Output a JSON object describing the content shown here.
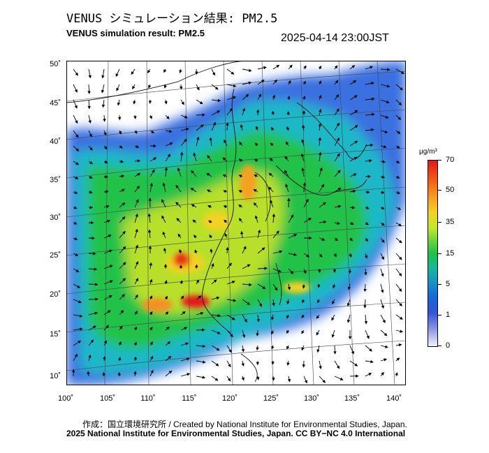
{
  "header": {
    "title_jp": "VENUS シミュレーション結果: PM2.5",
    "title_en": "VENUS simulation result: PM2.5",
    "timestamp": "2025-04-14 23:00JST"
  },
  "map": {
    "lat_labels": [
      "50˚",
      "45˚",
      "40˚",
      "35˚",
      "30˚",
      "25˚",
      "20˚",
      "15˚",
      "10˚"
    ],
    "lon_labels": [
      "100˚",
      "105˚",
      "110˚",
      "115˚",
      "120˚",
      "125˚",
      "130˚",
      "135˚",
      "140˚"
    ],
    "wind_vectors_shown": true,
    "concentration_field": "PM2.5"
  },
  "colorbar": {
    "unit": "μg/m³",
    "labels": [
      "70",
      "50",
      "35",
      "15",
      "5",
      "1",
      "0"
    ],
    "colors": [
      "#e01818",
      "#f5a020",
      "#f2d224",
      "#1fc04c",
      "#17b89a",
      "#1766d8",
      "#f2f2fb"
    ]
  },
  "footer": {
    "credit_line": "作成：国立環境研究所 / Created by National Institute for Environmental Studies, Japan.",
    "copyright_line": "2025 National Institute for Environmental Studies, Japan. CC BY−NC 4.0 International"
  }
}
